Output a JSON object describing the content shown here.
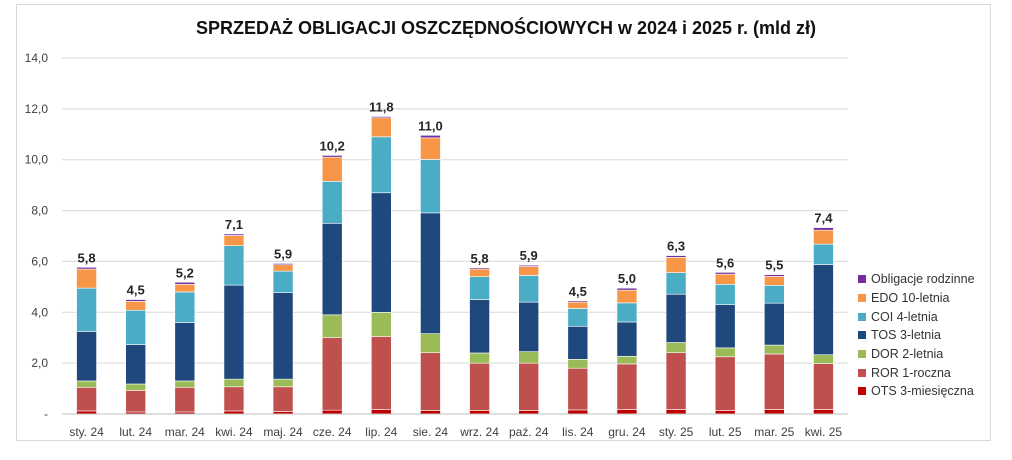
{
  "chart_data": {
    "type": "bar",
    "stacked": true,
    "title": "SPRZEDAŻ OBLIGACJI OSZCZĘDNOŚCIOWYCH w 2024 i 2025 r. (mld zł)",
    "xlabel": "",
    "ylabel": "",
    "ylim": [
      0,
      14
    ],
    "yticks": [
      "-",
      "2,0",
      "4,0",
      "6,0",
      "8,0",
      "10,0",
      "12,0",
      "14,0"
    ],
    "ytick_values": [
      0,
      2,
      4,
      6,
      8,
      10,
      12,
      14
    ],
    "grid": true,
    "legend_position": "right",
    "categories": [
      "sty. 24",
      "lut. 24",
      "mar. 24",
      "kwi. 24",
      "maj. 24",
      "cze. 24",
      "lip. 24",
      "sie. 24",
      "wrz. 24",
      "paź. 24",
      "lis. 24",
      "gru. 24",
      "sty. 25",
      "lut. 25",
      "mar. 25",
      "kwi. 25"
    ],
    "totals": [
      "5,8",
      "4,5",
      "5,2",
      "7,1",
      "5,9",
      "10,2",
      "11,8",
      "11,0",
      "5,8",
      "5,9",
      "4,5",
      "5,0",
      "6,3",
      "5,6",
      "5,5",
      "7,4"
    ],
    "series": [
      {
        "name": "OTS 3-miesięczna",
        "color": "#c00000",
        "values": [
          0.12,
          0.08,
          0.08,
          0.12,
          0.1,
          0.15,
          0.18,
          0.14,
          0.14,
          0.14,
          0.16,
          0.18,
          0.18,
          0.14,
          0.18,
          0.18
        ]
      },
      {
        "name": "ROR 1-roczna",
        "color": "#c0504d",
        "values": [
          0.93,
          0.85,
          0.97,
          0.95,
          0.97,
          2.85,
          2.87,
          2.27,
          1.86,
          1.86,
          1.64,
          1.79,
          2.23,
          2.11,
          2.18,
          1.8
        ]
      },
      {
        "name": "DOR 2-letnia",
        "color": "#9bbb59",
        "values": [
          0.25,
          0.25,
          0.25,
          0.3,
          0.3,
          0.9,
          0.95,
          0.75,
          0.4,
          0.45,
          0.35,
          0.3,
          0.4,
          0.35,
          0.35,
          0.35
        ]
      },
      {
        "name": "TOS 3-letnia",
        "color": "#1f497d",
        "values": [
          1.95,
          1.55,
          2.3,
          3.7,
          3.4,
          3.6,
          4.7,
          4.75,
          2.1,
          1.95,
          1.3,
          1.35,
          1.9,
          1.7,
          1.65,
          3.55
        ]
      },
      {
        "name": "COI 4-letnia",
        "color": "#4bacc6",
        "values": [
          1.7,
          1.35,
          1.2,
          1.55,
          0.85,
          1.65,
          2.2,
          2.1,
          0.9,
          1.05,
          0.7,
          0.75,
          0.85,
          0.8,
          0.7,
          0.8
        ]
      },
      {
        "name": "EDO 10-letnia",
        "color": "#f79646",
        "values": [
          0.75,
          0.35,
          0.3,
          0.4,
          0.25,
          0.95,
          0.75,
          0.85,
          0.3,
          0.35,
          0.25,
          0.5,
          0.6,
          0.4,
          0.35,
          0.55
        ]
      },
      {
        "name": "Obligacje rodzinne",
        "color": "#7030a0",
        "values": [
          0.07,
          0.07,
          0.08,
          0.06,
          0.05,
          0.07,
          0.05,
          0.1,
          0.05,
          0.05,
          0.05,
          0.08,
          0.07,
          0.07,
          0.07,
          0.1
        ]
      }
    ]
  },
  "legend_order": [
    "Obligacje rodzinne",
    "EDO 10-letnia",
    "COI 4-letnia",
    "TOS 3-letnia",
    "DOR 2-letnia",
    "ROR 1-roczna",
    "OTS 3-miesięczna"
  ]
}
